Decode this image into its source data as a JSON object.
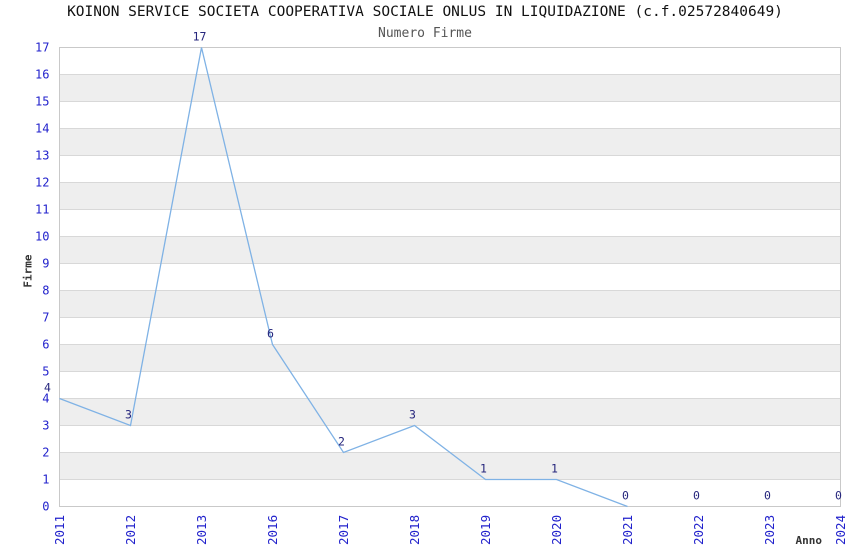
{
  "chart_data": {
    "type": "line",
    "title": "KOINON SERVICE SOCIETA COOPERATIVA SOCIALE ONLUS IN LIQUIDAZIONE (c.f.02572840649)",
    "subtitle": "Numero Firme",
    "xlabel": "Anno",
    "ylabel": "Firme",
    "categories": [
      "2011",
      "2012",
      "2013",
      "2016",
      "2017",
      "2018",
      "2019",
      "2020",
      "2021",
      "2022",
      "2023",
      "2024"
    ],
    "values": [
      4,
      3,
      17,
      6,
      2,
      3,
      1,
      1,
      0,
      0,
      0,
      0
    ],
    "ylim": [
      0,
      17
    ],
    "y_tick_step": 1,
    "grid": "horizontal",
    "banded_rows": true,
    "legend_position": "none",
    "line_points": 9,
    "markers": "none",
    "colors": {
      "line": "#7fb2e5",
      "tick_label": "#2222cc",
      "data_label": "#26267d",
      "band": "#eeeeee",
      "grid": "#d8d8d8",
      "border": "#c9c9c9",
      "title": "#111111",
      "subtitle": "#555555",
      "axis_title": "#333333",
      "background": "#ffffff"
    }
  }
}
